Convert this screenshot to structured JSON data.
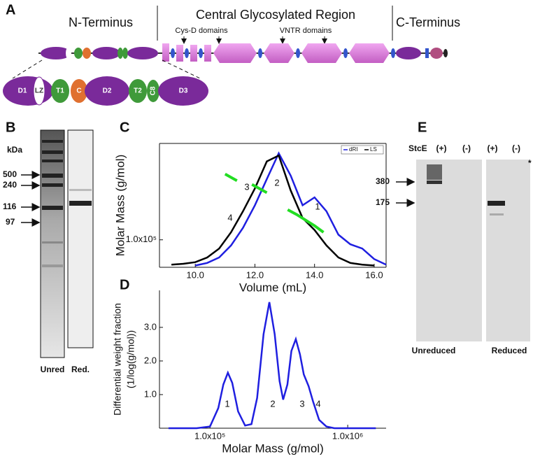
{
  "panel_labels": [
    "A",
    "B",
    "C",
    "D",
    "E"
  ],
  "panel_a": {
    "n_terminus": "N-Terminus",
    "central": "Central Glycosylated Region",
    "c_terminus": "C-Terminus",
    "cys_d": "Cys-D domains",
    "vntr": "VNTR domains",
    "domains": [
      "D1",
      "LZ",
      "T1",
      "C",
      "D2",
      "T2",
      "C8",
      "D3"
    ]
  },
  "panel_b": {
    "unit": "kDa",
    "markers": [
      "500",
      "240",
      "116",
      "97"
    ],
    "lanes": [
      "Unred",
      "Red."
    ]
  },
  "panel_e": {
    "enzyme": "StcE",
    "lanes": [
      "(+)",
      "(-)",
      "(+)",
      "(-)"
    ],
    "markers": [
      "380",
      "175"
    ],
    "asterisk": "*",
    "conditions": [
      "Unreduced",
      "Reduced"
    ]
  },
  "chart_data": [
    {
      "type": "line",
      "xlabel": "Volume (mL)",
      "ylabel": [
        "Molar Mass (g/mol)"
      ],
      "ylog": true,
      "frame": true,
      "legend": "upper right",
      "x": [
        9.2,
        9.6,
        10.0,
        10.4,
        10.8,
        11.2,
        11.6,
        12.0,
        12.4,
        12.8,
        13.2,
        13.6,
        14.0,
        14.4,
        14.8,
        15.2,
        15.6,
        16.0,
        16.4
      ],
      "xlim": [
        8.8,
        16.4
      ],
      "xticks": [
        {
          "value": 10,
          "label": "10.0"
        },
        {
          "value": 12,
          "label": "12.0"
        },
        {
          "value": 14,
          "label": "14.0"
        },
        {
          "value": 16,
          "label": "16.0"
        }
      ],
      "ylim": [
        60000,
        600000
      ],
      "yticks": [
        {
          "value": 100000,
          "label": "1.0x10⁵"
        }
      ],
      "series": [
        {
          "name": "dRI",
          "color": "#1f1fe0",
          "values": [
            null,
            null,
            62000,
            65000,
            72000,
            90000,
            125000,
            190000,
            310000,
            500000,
            330000,
            190000,
            220000,
            170000,
            110000,
            92000,
            85000,
            70000,
            63000
          ]
        },
        {
          "name": "LS",
          "color": "#000000",
          "values": [
            63000,
            64000,
            66000,
            72000,
            85000,
            115000,
            170000,
            260000,
            430000,
            480000,
            250000,
            150000,
            120000,
            90000,
            72000,
            65000,
            63000,
            62000,
            null
          ]
        },
        {
          "color": "#22dd22",
          "x": [
            11.0,
            11.4
          ],
          "values": [
            340000,
            300000
          ]
        },
        {
          "color": "#22dd22",
          "x": [
            11.9,
            12.4,
            13.0,
            13.3
          ],
          "values": [
            280000,
            240000,
            null,
            null
          ]
        },
        {
          "color": "#22dd22",
          "x": [
            13.1,
            13.4,
            14.0,
            14.3
          ],
          "values": [
            175000,
            160000,
            130000,
            115000
          ]
        }
      ],
      "annotations": [
        "1",
        "2",
        "3",
        "4"
      ]
    },
    {
      "type": "line",
      "xlabel": "Molar Mass (g/mol)",
      "ylabel": [
        "Differential weight fraction",
        "(1/log(g/mol))"
      ],
      "xlog": true,
      "frame": false,
      "x": [
        50000,
        80000,
        100000,
        115000,
        125000,
        135000,
        145000,
        160000,
        180000,
        200000,
        220000,
        245000,
        270000,
        295000,
        320000,
        340000,
        365000,
        390000,
        420000,
        450000,
        480000,
        520000,
        560000,
        620000,
        700000,
        800000,
        1000000,
        1600000
      ],
      "xlim": [
        43000,
        1900000
      ],
      "xticks": [
        {
          "value": 100000,
          "label": "1.0x10⁵"
        },
        {
          "value": 1000000,
          "label": "1.0x10⁶"
        }
      ],
      "ylim": [
        0,
        4.1
      ],
      "yticks": [
        {
          "value": 1,
          "label": "1.0"
        },
        {
          "value": 2,
          "label": "2.0"
        },
        {
          "value": 3,
          "label": "3.0"
        }
      ],
      "series": [
        {
          "color": "#1f1fe0",
          "values": [
            0,
            0,
            0.05,
            0.6,
            1.3,
            1.65,
            1.35,
            0.5,
            0.08,
            0.12,
            0.9,
            2.8,
            3.75,
            2.8,
            1.4,
            0.85,
            1.3,
            2.3,
            2.65,
            2.2,
            1.6,
            1.25,
            0.8,
            0.25,
            0.05,
            0,
            0,
            0
          ]
        }
      ],
      "annotations": [
        "1",
        "2",
        "3",
        "4"
      ]
    }
  ]
}
